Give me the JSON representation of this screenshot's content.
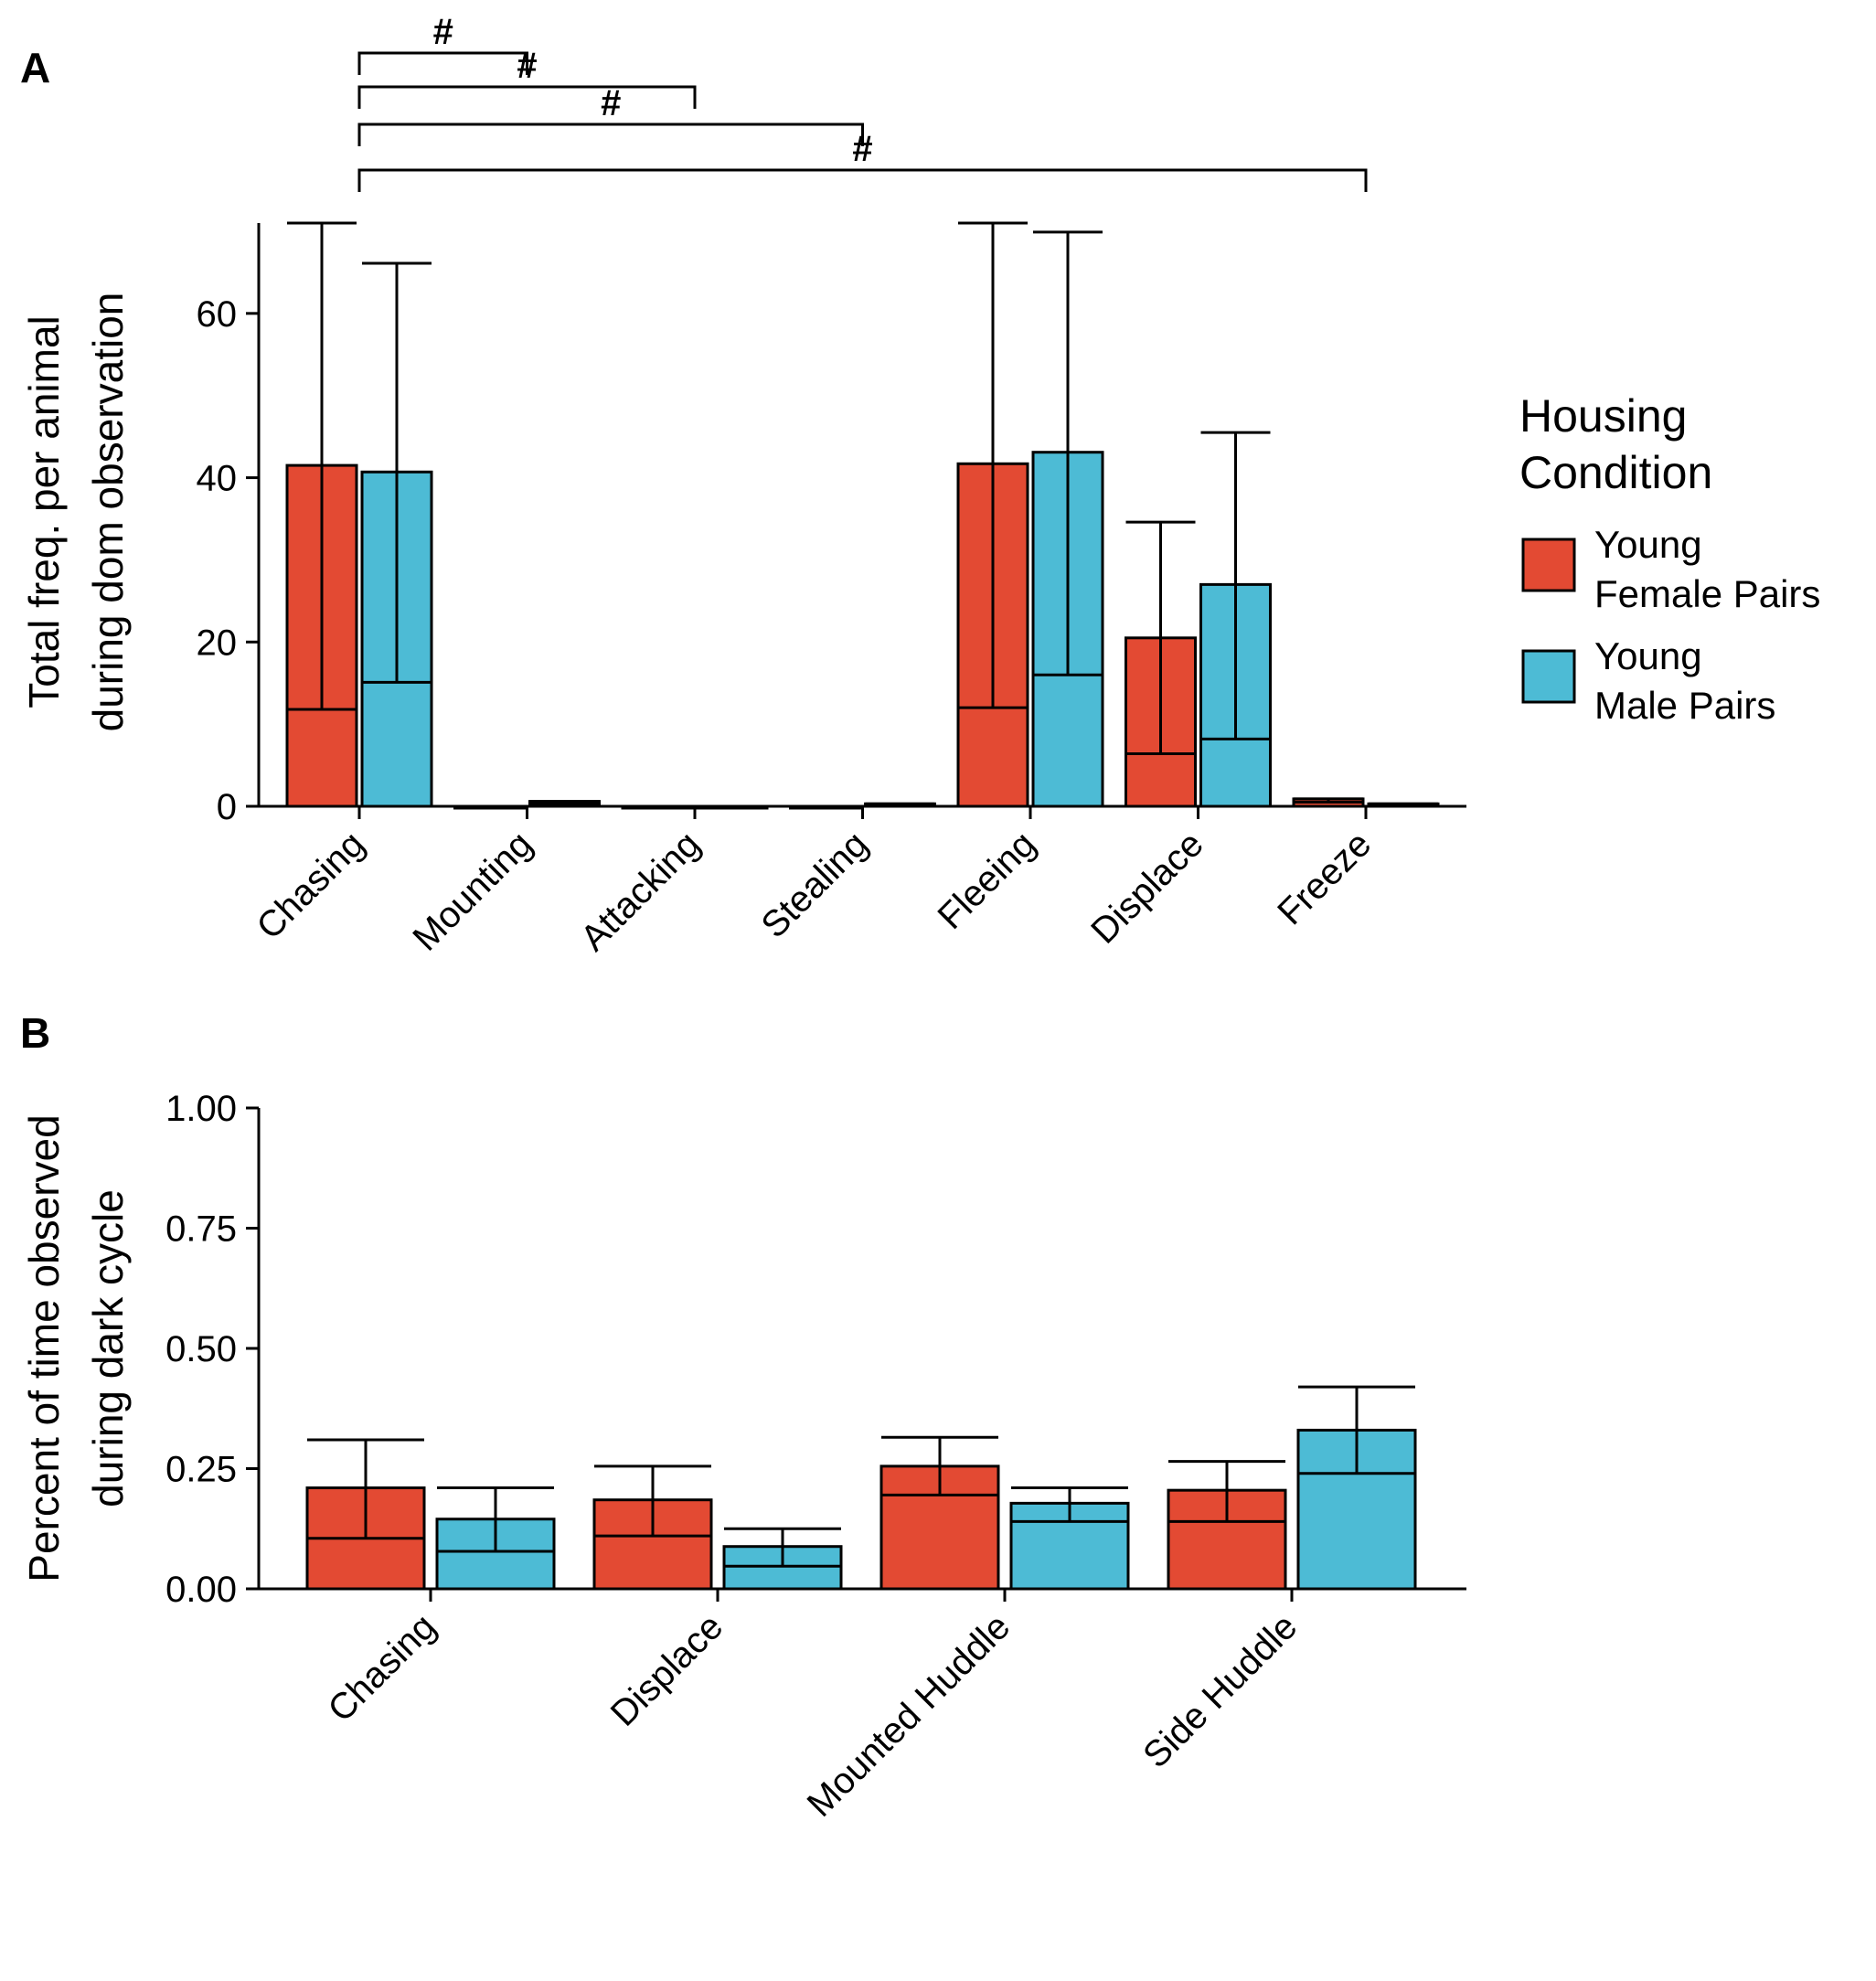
{
  "figure": {
    "legend": {
      "title_line1": "Housing",
      "title_line2": "Condition",
      "entries": [
        {
          "line1": "Young",
          "line2": "Female Pairs",
          "color": "#E34A33"
        },
        {
          "line1": "Young",
          "line2": "Male Pairs",
          "color": "#4DBBD5"
        }
      ]
    }
  },
  "chart_data": [
    {
      "panel": "A",
      "type": "bar",
      "ylabel_line1": "Total freq. per animal",
      "ylabel_line2": "during dom observation",
      "xlabel": "",
      "ylim": [
        0,
        71
      ],
      "yticks": [
        0,
        20,
        40,
        60
      ],
      "categories": [
        "Chasing",
        "Mounting",
        "Attacking",
        "Stealing",
        "Fleeing",
        "Displace",
        "Freeze"
      ],
      "series": [
        {
          "name": "Young Female Pairs",
          "color": "#E34A33",
          "values": [
            41.5,
            0,
            0,
            0,
            41.7,
            20.5,
            0.9
          ],
          "error_low": [
            11.8,
            0,
            0,
            0,
            12.0,
            6.4,
            0.5
          ],
          "error_high": [
            71.0,
            0,
            0,
            0,
            71.0,
            34.6,
            0.9
          ]
        },
        {
          "name": "Young Male Pairs",
          "color": "#4DBBD5",
          "values": [
            40.7,
            0.6,
            0,
            0.3,
            43.1,
            27.0,
            0.3
          ],
          "error_low": [
            15.1,
            0.3,
            0,
            0.2,
            16.0,
            8.2,
            0.2
          ],
          "error_high": [
            66.1,
            0.6,
            0,
            0.3,
            69.9,
            45.5,
            0.3
          ]
        }
      ],
      "significance": [
        {
          "from": "Chasing",
          "to": "Mounting",
          "label": "#"
        },
        {
          "from": "Chasing",
          "to": "Attacking",
          "label": "#"
        },
        {
          "from": "Chasing",
          "to": "Stealing",
          "label": "#"
        },
        {
          "from": "Chasing",
          "to": "Freeze",
          "label": "#"
        }
      ]
    },
    {
      "panel": "B",
      "type": "bar",
      "ylabel_line1": "Percent of time observed",
      "ylabel_line2": "during dark cycle",
      "xlabel": "",
      "ylim": [
        0,
        1
      ],
      "yticks": [
        "0.00",
        "0.25",
        "0.50",
        "0.75",
        "1.00"
      ],
      "categories": [
        "Chasing",
        "Displace",
        "Mounted Huddle",
        "Side Huddle"
      ],
      "series": [
        {
          "name": "Young Female Pairs",
          "color": "#E34A33",
          "values": [
            0.21,
            0.185,
            0.255,
            0.205
          ],
          "error_low": [
            0.105,
            0.11,
            0.195,
            0.14
          ],
          "error_high": [
            0.31,
            0.255,
            0.315,
            0.265
          ]
        },
        {
          "name": "Young Male Pairs",
          "color": "#4DBBD5",
          "values": [
            0.145,
            0.088,
            0.178,
            0.33
          ],
          "error_low": [
            0.078,
            0.047,
            0.14,
            0.24
          ],
          "error_high": [
            0.21,
            0.125,
            0.21,
            0.42
          ]
        }
      ]
    }
  ]
}
